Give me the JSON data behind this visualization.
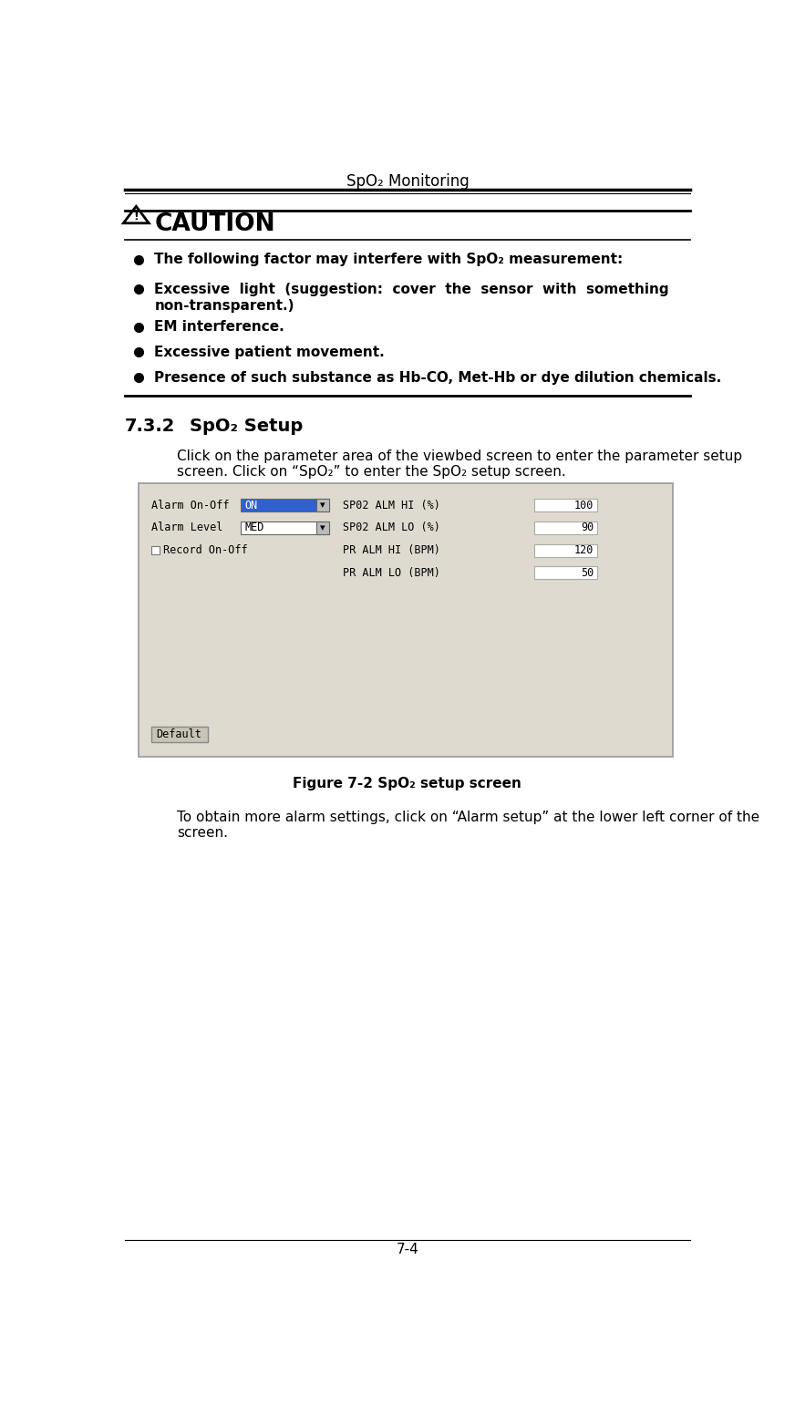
{
  "page_title": "SpO₂ Monitoring",
  "page_number": "7-4",
  "background_color": "#ffffff",
  "header_line_color": "#000000",
  "caution_title": "CAUTION",
  "caution_bullet1": "The following factor may interfere with SpO₂ measurement:",
  "caution_bullet2a": "Excessive  light  (suggestion:  cover  the  sensor  with  something",
  "caution_bullet2b": "non-transparent.)",
  "caution_bullet3": "EM interference.",
  "caution_bullet4": "Excessive patient movement.",
  "caution_bullet5": "Presence of such substance as Hb-CO, Met-Hb or dye dilution chemicals.",
  "section_number": "7.3.2",
  "section_title": "SpO₂ Setup",
  "para1_line1": "Click on the parameter area of the viewbed screen to enter the parameter setup",
  "para1_line2": "screen. Click on “SpO₂” to enter the SpO₂ setup screen.",
  "figure_caption": "Figure 7-2 SpO₂ setup screen",
  "para2_line1": "To obtain more alarm settings, click on “Alarm setup” at the lower left corner of the",
  "para2_line2": "screen.",
  "screen_bg": "#dedad0",
  "screen_border": "#999999",
  "label_font": "monospace",
  "screen_dropdown1_text": "ON",
  "screen_dropdown2_text": "MED",
  "screen_labels_right": [
    "SP02 ALM HI (%)",
    "SP02 ALM LO (%)",
    "PR ALM HI (BPM)",
    "PR ALM LO (BPM)"
  ],
  "screen_values_right": [
    "100",
    "90",
    "120",
    "50"
  ],
  "default_button": "Default",
  "dropdown_blue": "#3060cc",
  "dropdown_border": "#666666",
  "value_box_bg": "#ffffff",
  "value_box_border": "#aaaaaa"
}
